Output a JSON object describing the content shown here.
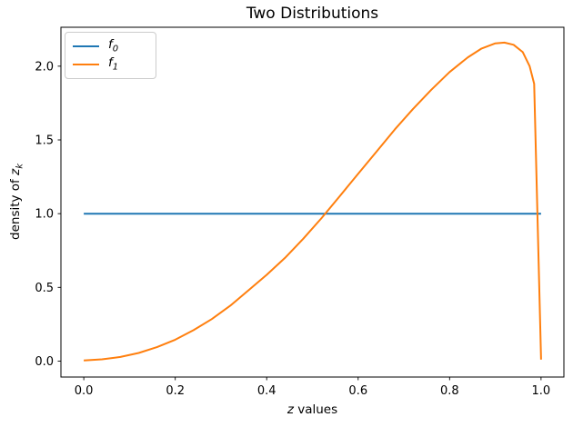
{
  "chart_data": {
    "type": "line",
    "title": "Two Distributions",
    "xlabel": {
      "var": "z",
      "rest": " values"
    },
    "ylabel": {
      "prefix": "density of ",
      "var": "z",
      "sub": "k"
    },
    "xlim": [
      -0.05,
      1.05
    ],
    "ylim": [
      -0.108,
      2.264
    ],
    "xticks": [
      0.0,
      0.2,
      0.4,
      0.6,
      0.8,
      1.0
    ],
    "xtick_labels": [
      "0.0",
      "0.2",
      "0.4",
      "0.6",
      "0.8",
      "1.0"
    ],
    "yticks": [
      0.0,
      0.5,
      1.0,
      1.5,
      2.0
    ],
    "ytick_labels": [
      "0.0",
      "0.5",
      "1.0",
      "1.5",
      "2.0"
    ],
    "grid": false,
    "legend_position": "upper left",
    "background_color": "#ffffff",
    "axis_color": "#000000",
    "series": [
      {
        "name": "f0",
        "label_var": "f",
        "label_sub": "0",
        "color": "#1f77b4",
        "points": [
          [
            0.0,
            1.0
          ],
          [
            1.0,
            1.0
          ]
        ]
      },
      {
        "name": "f1",
        "label_var": "f",
        "label_sub": "1",
        "color": "#ff7f0e",
        "points": [
          [
            0.0,
            0.005
          ],
          [
            0.04,
            0.012
          ],
          [
            0.08,
            0.028
          ],
          [
            0.12,
            0.055
          ],
          [
            0.16,
            0.095
          ],
          [
            0.2,
            0.145
          ],
          [
            0.24,
            0.21
          ],
          [
            0.28,
            0.285
          ],
          [
            0.32,
            0.375
          ],
          [
            0.36,
            0.48
          ],
          [
            0.4,
            0.585
          ],
          [
            0.44,
            0.7
          ],
          [
            0.48,
            0.83
          ],
          [
            0.52,
            0.97
          ],
          [
            0.56,
            1.12
          ],
          [
            0.6,
            1.27
          ],
          [
            0.64,
            1.42
          ],
          [
            0.68,
            1.57
          ],
          [
            0.72,
            1.71
          ],
          [
            0.76,
            1.84
          ],
          [
            0.8,
            1.96
          ],
          [
            0.84,
            2.06
          ],
          [
            0.87,
            2.12
          ],
          [
            0.9,
            2.155
          ],
          [
            0.92,
            2.16
          ],
          [
            0.94,
            2.145
          ],
          [
            0.96,
            2.095
          ],
          [
            0.975,
            2.0
          ],
          [
            0.985,
            1.88
          ],
          [
            1.0,
            0.01
          ]
        ]
      }
    ]
  }
}
